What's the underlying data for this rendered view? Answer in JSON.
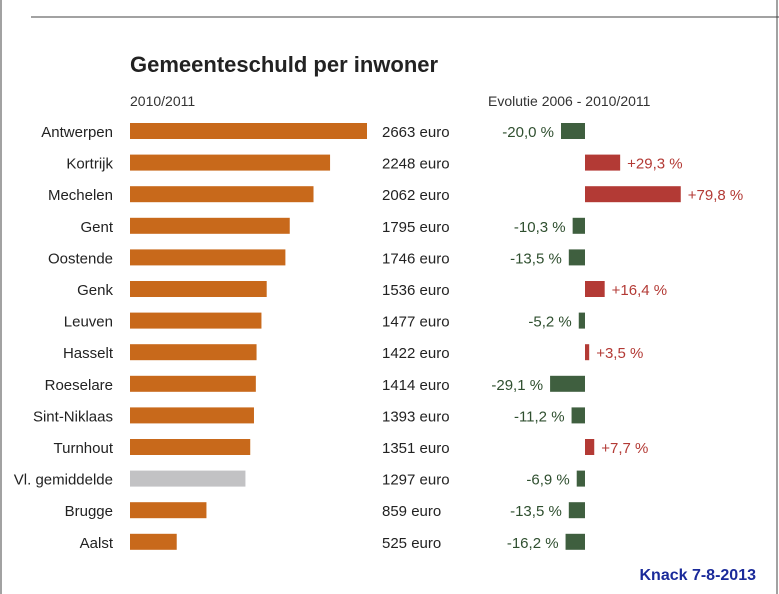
{
  "chart_data": {
    "type": "bar",
    "title": "Gemeenteschuld per inwoner",
    "left_subtitle": "2010/2011",
    "right_subtitle": "Evolutie 2006 - 2010/2011",
    "source": "Knack 7-8-2013",
    "categories": [
      "Antwerpen",
      "Kortrijk",
      "Mechelen",
      "Gent",
      "Oostende",
      "Genk",
      "Leuven",
      "Hasselt",
      "Roeselare",
      "Sint-Niklaas",
      "Turnhout",
      "Vl. gemiddelde",
      "Brugge",
      "Aalst"
    ],
    "values": [
      2663,
      2248,
      2062,
      1795,
      1746,
      1536,
      1477,
      1422,
      1414,
      1393,
      1351,
      1297,
      859,
      525
    ],
    "value_labels": [
      "2663 euro",
      "2248 euro",
      "2062 euro",
      "1795 euro",
      "1746 euro",
      "1536 euro",
      "1477 euro",
      "1422 euro",
      "1414 euro",
      "1393 euro",
      "1351 euro",
      "1297 euro",
      "859 euro",
      "525 euro"
    ],
    "evolution": [
      -20.0,
      29.3,
      79.8,
      -10.3,
      -13.5,
      16.4,
      -5.2,
      3.5,
      -29.1,
      -11.2,
      7.7,
      -6.9,
      -13.5,
      -16.2
    ],
    "evolution_labels": [
      "-20,0 %",
      "+29,3 %",
      "+79,8 %",
      "-10,3 %",
      "-13,5 %",
      "+16,4 %",
      "-5,2 %",
      "+3,5 %",
      "-29,1 %",
      "-11,2 %",
      "+7,7 %",
      "-6,9 %",
      "-13,5 %",
      "-16,2 %"
    ],
    "highlight_category": "Vl. gemiddelde",
    "colors": {
      "bar": "#c8691b",
      "highlight_bar": "#c2c2c4",
      "negative": "#3f5f3f",
      "positive": "#b33a35",
      "negative_text": "#2f4f2f",
      "positive_text": "#b33a35"
    }
  }
}
